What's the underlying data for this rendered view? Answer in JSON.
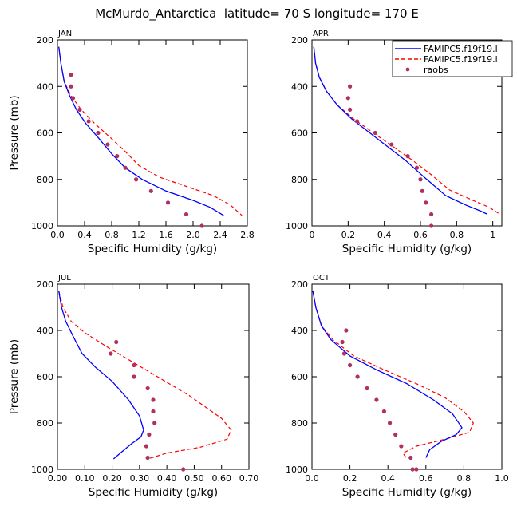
{
  "title": "McMurdo_Antarctica  latitude= 70 S longitude= 170 E",
  "legend": {
    "position": "top-right",
    "entries": [
      {
        "label": "FAMIPC5.f19f19.l",
        "color": "#0000ff",
        "style": "solid-line"
      },
      {
        "label": "FAMIPC5.f19f19.l",
        "color": "#ff0000",
        "style": "dashed-line"
      },
      {
        "label": "raobs",
        "color": "#b03060",
        "style": "dot"
      }
    ]
  },
  "colors": {
    "model1": "#0000ff",
    "model2": "#ff0000",
    "raobs": "#b03060"
  },
  "chart_data": [
    {
      "type": "line",
      "panel": "JAN",
      "xlabel": "Specific Humidity (g/kg)",
      "ylabel": "Pressure (mb)",
      "xlim": [
        0,
        2.8
      ],
      "ylim": [
        1000,
        200
      ],
      "xticks": [
        0,
        0.4,
        0.8,
        1.2,
        1.6,
        2.0,
        2.4,
        2.8
      ],
      "xtick_labels": [
        "0.0",
        "0.4",
        "0.8",
        "1.2",
        "1.6",
        "2.0",
        "2.4",
        "2.8"
      ],
      "yticks": [
        200,
        400,
        600,
        800,
        1000
      ],
      "ytick_labels": [
        "200",
        "400",
        "600",
        "800",
        "1000"
      ],
      "series": [
        {
          "name": "FAMIPC5.f19f19.l (solid)",
          "x": [
            0.02,
            0.05,
            0.1,
            0.18,
            0.28,
            0.42,
            0.6,
            0.8,
            1.0,
            1.25,
            1.6,
            2.0,
            2.25,
            2.45
          ],
          "y": [
            230,
            300,
            380,
            440,
            500,
            560,
            620,
            690,
            750,
            800,
            850,
            890,
            920,
            955
          ]
        },
        {
          "name": "FAMIPC5.f19f19.l (dashed)",
          "x": [
            0.02,
            0.05,
            0.1,
            0.2,
            0.35,
            0.55,
            0.78,
            1.0,
            1.2,
            1.5,
            1.9,
            2.3,
            2.55,
            2.72
          ],
          "y": [
            230,
            300,
            380,
            440,
            500,
            560,
            620,
            680,
            740,
            790,
            830,
            870,
            910,
            955
          ]
        },
        {
          "name": "raobs",
          "x": [
            0.2,
            0.2,
            0.23,
            0.33,
            0.46,
            0.6,
            0.74,
            0.88,
            1.0,
            1.16,
            1.38,
            1.63,
            1.9,
            2.13
          ],
          "y": [
            350,
            400,
            450,
            500,
            550,
            600,
            650,
            700,
            750,
            800,
            850,
            900,
            950,
            1000
          ]
        }
      ]
    },
    {
      "type": "line",
      "panel": "APR",
      "xlabel": "Specific Humidity (g/kg)",
      "ylabel": "Pressure (mb)",
      "xlim": [
        0,
        1.05
      ],
      "ylim": [
        1000,
        200
      ],
      "xticks": [
        0,
        0.2,
        0.4,
        0.6,
        0.8,
        1.0
      ],
      "xtick_labels": [
        "0",
        "0.2",
        "0.4",
        "0.6",
        "0.8",
        "1"
      ],
      "yticks": [
        200,
        400,
        600,
        800,
        1000
      ],
      "ytick_labels": [
        "200",
        "400",
        "600",
        "800",
        "1000"
      ],
      "series": [
        {
          "name": "FAMIPC5.f19f19.l (solid)",
          "x": [
            0.01,
            0.02,
            0.04,
            0.08,
            0.14,
            0.22,
            0.32,
            0.42,
            0.52,
            0.62,
            0.74,
            0.85,
            0.93,
            0.97
          ],
          "y": [
            230,
            300,
            360,
            420,
            480,
            540,
            600,
            660,
            720,
            790,
            870,
            910,
            935,
            950
          ]
        },
        {
          "name": "FAMIPC5.f19f19.l (dashed)",
          "x": [
            0.01,
            0.02,
            0.04,
            0.08,
            0.14,
            0.23,
            0.34,
            0.45,
            0.56,
            0.66,
            0.76,
            0.89,
            0.98,
            1.04
          ],
          "y": [
            230,
            300,
            360,
            420,
            480,
            540,
            600,
            660,
            720,
            780,
            845,
            890,
            920,
            950
          ]
        },
        {
          "name": "raobs",
          "x": [
            0.21,
            0.2,
            0.21,
            0.25,
            0.35,
            0.44,
            0.53,
            0.58,
            0.6,
            0.61,
            0.63,
            0.66,
            0.66
          ],
          "y": [
            400,
            450,
            500,
            550,
            600,
            650,
            700,
            750,
            800,
            850,
            900,
            950,
            1000
          ]
        }
      ]
    },
    {
      "type": "line",
      "panel": "JUL",
      "xlabel": "Specific Humidity (g/kg)",
      "ylabel": "Pressure (mb)",
      "xlim": [
        0,
        0.7
      ],
      "ylim": [
        1000,
        200
      ],
      "xticks": [
        0,
        0.1,
        0.2,
        0.3,
        0.4,
        0.5,
        0.6,
        0.7
      ],
      "xtick_labels": [
        "0.00",
        "0.10",
        "0.20",
        "0.30",
        "0.40",
        "0.50",
        "0.60",
        "0.70"
      ],
      "yticks": [
        200,
        400,
        600,
        800,
        1000
      ],
      "ytick_labels": [
        "200",
        "400",
        "600",
        "800",
        "1000"
      ],
      "series": [
        {
          "name": "FAMIPC5.f19f19.l (solid)",
          "x": [
            0.005,
            0.015,
            0.03,
            0.055,
            0.09,
            0.14,
            0.2,
            0.26,
            0.3,
            0.315,
            0.305,
            0.27,
            0.24,
            0.205
          ],
          "y": [
            230,
            300,
            360,
            420,
            500,
            560,
            620,
            700,
            770,
            830,
            860,
            890,
            920,
            955
          ]
        },
        {
          "name": "FAMIPC5.f19f19.l (dashed)",
          "x": [
            0.005,
            0.02,
            0.05,
            0.1,
            0.18,
            0.28,
            0.38,
            0.48,
            0.6,
            0.635,
            0.62,
            0.52,
            0.4,
            0.33
          ],
          "y": [
            230,
            300,
            360,
            410,
            470,
            540,
            610,
            680,
            780,
            830,
            870,
            905,
            930,
            955
          ]
        },
        {
          "name": "raobs",
          "x": [
            0.215,
            0.195,
            0.28,
            0.28,
            0.33,
            0.35,
            0.35,
            0.355,
            0.335,
            0.325,
            0.33,
            0.46
          ],
          "y": [
            450,
            500,
            550,
            600,
            650,
            700,
            750,
            800,
            850,
            900,
            950,
            1000
          ]
        }
      ]
    },
    {
      "type": "line",
      "panel": "OCT",
      "xlabel": "Specific Humidity (g/kg)",
      "ylabel": "Pressure (mb)",
      "xlim": [
        0,
        1.0
      ],
      "ylim": [
        1000,
        200
      ],
      "xticks": [
        0,
        0.2,
        0.4,
        0.6,
        0.8,
        1.0
      ],
      "xtick_labels": [
        "0.0",
        "0.2",
        "0.4",
        "0.6",
        "0.8",
        "1.0"
      ],
      "yticks": [
        200,
        400,
        600,
        800,
        1000
      ],
      "ytick_labels": [
        "200",
        "400",
        "600",
        "800",
        "1000"
      ],
      "series": [
        {
          "name": "FAMIPC5.f19f19.l (solid)",
          "x": [
            0.005,
            0.02,
            0.05,
            0.1,
            0.2,
            0.34,
            0.5,
            0.64,
            0.74,
            0.79,
            0.76,
            0.68,
            0.62,
            0.6
          ],
          "y": [
            230,
            300,
            380,
            440,
            510,
            570,
            630,
            700,
            760,
            820,
            850,
            880,
            915,
            950
          ]
        },
        {
          "name": "FAMIPC5.f19f19.l (dashed)",
          "x": [
            0.005,
            0.02,
            0.05,
            0.11,
            0.22,
            0.38,
            0.55,
            0.7,
            0.8,
            0.85,
            0.83,
            0.7,
            0.55,
            0.48,
            0.5
          ],
          "y": [
            230,
            300,
            380,
            440,
            510,
            570,
            630,
            690,
            750,
            800,
            840,
            870,
            900,
            930,
            955
          ]
        },
        {
          "name": "raobs",
          "x": [
            0.18,
            0.16,
            0.17,
            0.2,
            0.24,
            0.29,
            0.34,
            0.38,
            0.41,
            0.44,
            0.47,
            0.52,
            0.55,
            0.53
          ],
          "y": [
            400,
            450,
            500,
            550,
            600,
            650,
            700,
            750,
            800,
            850,
            900,
            950,
            1000,
            1000
          ]
        }
      ]
    }
  ]
}
